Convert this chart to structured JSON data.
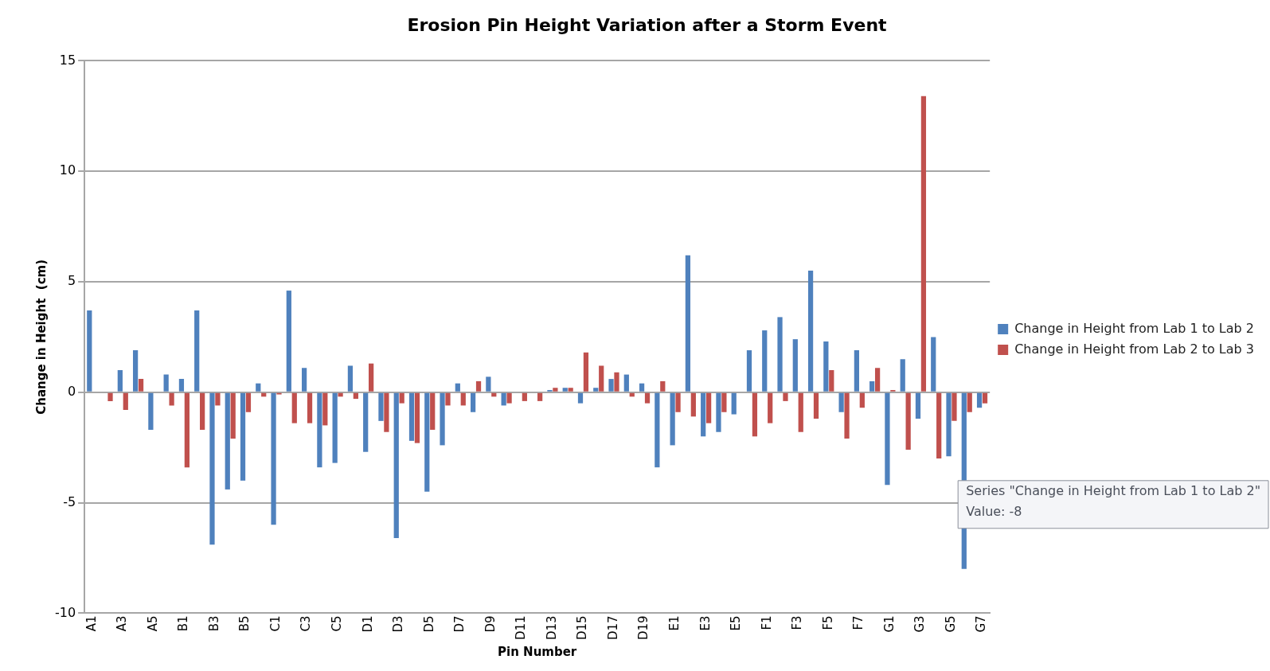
{
  "chart_data": {
    "type": "bar",
    "title": "Erosion Pin Height Variation after a Storm Event",
    "xlabel": "Pin Number",
    "ylabel": "Change in Height  (cm)",
    "categories": [
      "A1",
      null,
      "A3",
      null,
      "A5",
      null,
      "B1",
      null,
      "B3",
      null,
      "B5",
      null,
      "C1",
      null,
      "C3",
      null,
      "C5",
      null,
      "D1",
      null,
      "D3",
      null,
      "D5",
      null,
      "D7",
      null,
      "D9",
      null,
      "D11",
      null,
      "D13",
      null,
      "D15",
      null,
      "D17",
      null,
      "D19",
      null,
      "E1",
      null,
      "E3",
      null,
      "E5",
      null,
      "F1",
      null,
      "F3",
      null,
      "F5",
      null,
      "F7",
      null,
      "G1",
      null,
      "G3",
      null,
      "G5",
      null,
      "G7"
    ],
    "series": [
      {
        "name": "Change in Height from Lab 1 to Lab 2",
        "color": "#4f81bd",
        "values": [
          3.7,
          0,
          1.0,
          1.9,
          -1.7,
          0.8,
          0.6,
          3.7,
          -6.9,
          -4.4,
          -4.0,
          0.4,
          -6.0,
          4.6,
          1.1,
          -3.4,
          -3.2,
          1.2,
          -2.7,
          -1.3,
          -6.6,
          -2.2,
          -4.5,
          -2.4,
          0.4,
          -0.9,
          0.7,
          -0.6,
          0,
          0,
          0.1,
          0.2,
          -0.5,
          0.2,
          0.6,
          0.8,
          0.4,
          -3.4,
          -2.4,
          6.2,
          -2.0,
          -1.8,
          -1.0,
          1.9,
          2.8,
          3.4,
          2.4,
          5.5,
          2.3,
          -0.9,
          1.9,
          0.5,
          -4.2,
          1.5,
          -1.2,
          2.5,
          -2.9,
          -8,
          -0.7
        ]
      },
      {
        "name": "Change in Height from Lab 2 to Lab 3",
        "color": "#c0504d",
        "values": [
          0,
          -0.4,
          -0.8,
          0.6,
          0,
          -0.6,
          -3.4,
          -1.7,
          -0.6,
          -2.1,
          -0.9,
          -0.2,
          -0.1,
          -1.4,
          -1.4,
          -1.5,
          -0.2,
          -0.3,
          1.3,
          -1.8,
          -0.5,
          -2.3,
          -1.7,
          -0.6,
          -0.6,
          0.5,
          -0.2,
          -0.5,
          -0.4,
          -0.4,
          0.2,
          0.2,
          1.8,
          1.2,
          0.9,
          -0.2,
          -0.5,
          0.5,
          -0.9,
          -1.1,
          -1.4,
          -0.9,
          0,
          -2.0,
          -1.4,
          -0.4,
          -1.8,
          -1.2,
          1.0,
          -2.1,
          -0.7,
          1.1,
          0.1,
          -2.6,
          13.4,
          -3.0,
          -1.3,
          -0.9,
          -0.5
        ]
      }
    ],
    "ylim": [
      -10,
      15
    ],
    "yticks": [
      -10,
      -5,
      0,
      5,
      10,
      15
    ],
    "grid": "y",
    "legend": "right",
    "annotations": [
      "Series \"Change in Height from Lab 1 to Lab 2\"\nValue: -8"
    ]
  }
}
